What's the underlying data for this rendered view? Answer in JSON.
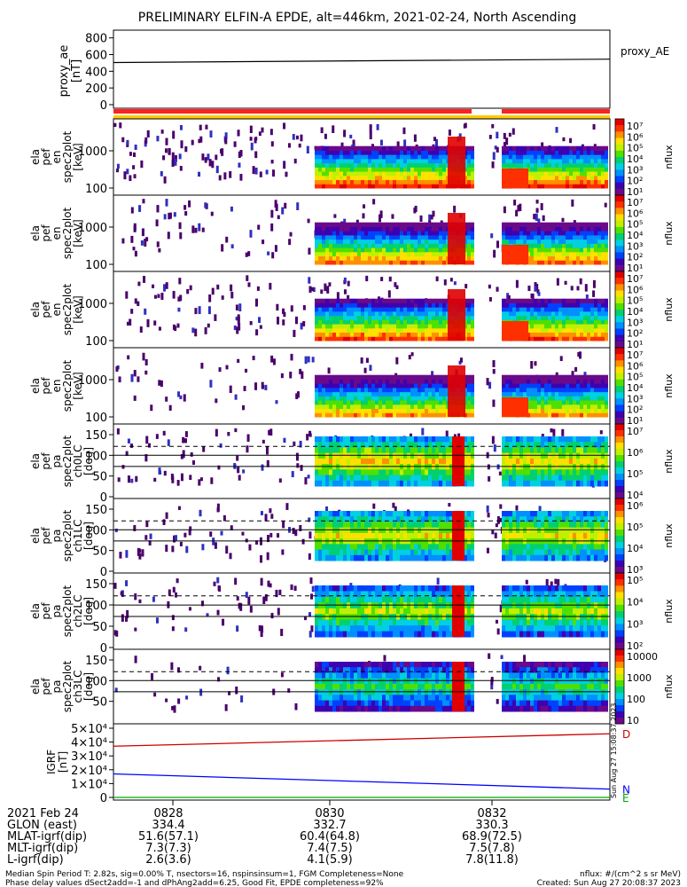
{
  "title": "PRELIMINARY ELFIN-A EPDE, alt=446km, 2021-02-24, North Ascending",
  "chart_data": [
    {
      "type": "line",
      "name": "proxy_ae",
      "ylabel": [
        "proxy_ae",
        "[nT]"
      ],
      "yticks": [
        800,
        600,
        400,
        200,
        0
      ],
      "ylim": [
        0,
        850
      ],
      "legend": "proxy_AE",
      "series": [
        {
          "x": [
            "0827",
            "0833.5"
          ],
          "values": [
            505,
            545
          ]
        }
      ]
    },
    {
      "type": "heatmap",
      "name": "en_spectra_1",
      "ylabel": [
        "ela",
        "pef",
        "en",
        "spec2plot",
        "[keV]"
      ],
      "yticks": [
        "1000",
        "100"
      ],
      "colorbar": {
        "label": "nflux",
        "ticks": [
          "10⁷",
          "10⁶",
          "10⁵",
          "10⁴",
          "10³",
          "10²",
          "10¹"
        ]
      }
    },
    {
      "type": "heatmap",
      "name": "en_spectra_2",
      "ylabel": [
        "ela",
        "pef",
        "en",
        "spec2plot",
        "[keV]"
      ],
      "yticks": [
        "1000",
        "100"
      ],
      "colorbar": {
        "label": "nflux",
        "ticks": [
          "10⁷",
          "10⁶",
          "10⁵",
          "10⁴",
          "10³",
          "10²",
          "10¹"
        ]
      }
    },
    {
      "type": "heatmap",
      "name": "en_spectra_3",
      "ylabel": [
        "ela",
        "pef",
        "en",
        "spec2plot",
        "[keV]"
      ],
      "yticks": [
        "1000",
        "100"
      ],
      "colorbar": {
        "label": "nflux",
        "ticks": [
          "10⁷",
          "10⁶",
          "10⁵",
          "10⁴",
          "10³",
          "10²",
          "10¹"
        ]
      }
    },
    {
      "type": "heatmap",
      "name": "en_spectra_4",
      "ylabel": [
        "ela",
        "pef",
        "en",
        "spec2plot",
        "[keV]"
      ],
      "yticks": [
        "1000",
        "100"
      ],
      "colorbar": {
        "label": "nflux",
        "ticks": [
          "10⁷",
          "10⁶",
          "10⁵",
          "10⁴",
          "10³",
          "10²",
          "10¹"
        ]
      }
    },
    {
      "type": "heatmap",
      "name": "pa_ch0",
      "ylabel": [
        "ela",
        "pef",
        "pa",
        "spec2plot",
        "ch0LC",
        "[deg]"
      ],
      "yticks": [
        "150",
        "100",
        "50",
        "0"
      ],
      "colorbar": {
        "label": "nflux",
        "ticks": [
          "10⁷",
          "10⁶",
          "10⁵",
          "10⁴"
        ]
      }
    },
    {
      "type": "heatmap",
      "name": "pa_ch1",
      "ylabel": [
        "ela",
        "pef",
        "pa",
        "spec2plot",
        "ch1LC",
        "[deg]"
      ],
      "yticks": [
        "150",
        "100",
        "50",
        "0"
      ],
      "colorbar": {
        "label": "nflux",
        "ticks": [
          "10⁶",
          "10⁵",
          "10⁴",
          "10³"
        ]
      }
    },
    {
      "type": "heatmap",
      "name": "pa_ch2",
      "ylabel": [
        "ela",
        "pef",
        "pa",
        "spec2plot",
        "ch2LC",
        "[deg]"
      ],
      "yticks": [
        "150",
        "100",
        "50",
        "0"
      ],
      "colorbar": {
        "label": "nflux",
        "ticks": [
          "10⁵",
          "10⁴",
          "10³",
          "10²"
        ]
      }
    },
    {
      "type": "heatmap",
      "name": "pa_ch3",
      "ylabel": [
        "ela",
        "pef",
        "pa",
        "spec2plot",
        "ch3LC",
        "[deg]"
      ],
      "yticks": [
        "150",
        "100",
        "50"
      ],
      "colorbar": {
        "label": "nflux",
        "ticks": [
          "10000",
          "1000",
          "100",
          "10"
        ]
      }
    },
    {
      "type": "line",
      "name": "igrf",
      "ylabel": [
        "IGRF",
        "[nT]"
      ],
      "yticks": [
        "5×10⁴",
        "4×10⁴",
        "3×10⁴",
        "2×10⁴",
        "1×10⁴",
        "0"
      ],
      "ylim": [
        0,
        50000
      ],
      "series": [
        {
          "name": "D",
          "color": "#cc0000",
          "x": [
            "0827",
            "0833.5"
          ],
          "values": [
            37000,
            46000
          ]
        },
        {
          "name": "N",
          "color": "#0000ff",
          "x": [
            "0827",
            "0833.5"
          ],
          "values": [
            17000,
            6000
          ]
        },
        {
          "name": "E",
          "color": "#00aa00",
          "x": [
            "0827",
            "0833.5"
          ],
          "values": [
            0,
            0
          ]
        }
      ],
      "side_text": "Sun Aug 27 15:08:37 2023"
    }
  ],
  "orbit_table": {
    "header": "2021 Feb 24",
    "times": [
      "0828",
      "0830",
      "0832"
    ],
    "rows": [
      {
        "label": "GLON (east)",
        "values": [
          "334.4",
          "332.7",
          "330.3"
        ]
      },
      {
        "label": "MLAT-igrf(dip)",
        "values": [
          "51.6(57.1)",
          "60.4(64.8)",
          "68.9(72.5)"
        ]
      },
      {
        "label": "MLT-igrf(dip)",
        "values": [
          "7.3(7.3)",
          "7.4(7.5)",
          "7.5(7.8)"
        ]
      },
      {
        "label": "L-igrf(dip)",
        "values": [
          "2.6(3.6)",
          "4.1(5.9)",
          "7.8(11.8)"
        ]
      }
    ]
  },
  "footer": {
    "line1_left": "Median Spin Period T: 2.82s, sig=0.00% T, nsectors=16, nspinsinsum=1, FGM Completeness=None",
    "line2_left": "Phase delay values dSect2add=-1 and dPhAng2add=6.25, Good Fit, EPDE completeness=92%",
    "line1_right": "nflux: #/(cm^2 s sr MeV)",
    "line2_right": "Created: Sun Aug 27 20:08:37 2023"
  },
  "colors": {
    "bar_red": "#ff2020",
    "bar_yellow": "#ffcc00"
  }
}
